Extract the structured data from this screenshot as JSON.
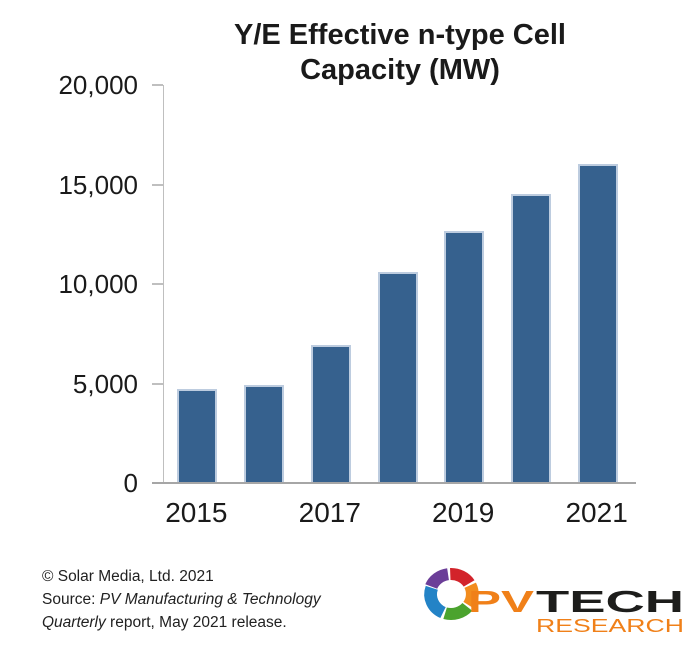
{
  "chart_data": {
    "type": "bar",
    "title": "Y/E Effective n-type Cell Capacity (MW)",
    "categories": [
      "2015",
      "2016",
      "2017",
      "2018",
      "2019",
      "2020",
      "2021"
    ],
    "values": [
      4700,
      4900,
      6950,
      10600,
      12650,
      14500,
      16050
    ],
    "xlabel": "",
    "ylabel": "",
    "ylim": [
      0,
      20000
    ],
    "grid": false,
    "legend": "none",
    "y_ticks": [
      {
        "value": 0,
        "label": "0"
      },
      {
        "value": 5000,
        "label": "5,000"
      },
      {
        "value": 10000,
        "label": "10,000"
      },
      {
        "value": 15000,
        "label": "15,000"
      },
      {
        "value": 20000,
        "label": "20,000"
      }
    ],
    "x_ticks": [
      {
        "slot": 0,
        "label": "2015"
      },
      {
        "slot": 2,
        "label": "2017"
      },
      {
        "slot": 4,
        "label": "2019"
      },
      {
        "slot": 6,
        "label": "2021"
      }
    ],
    "bar_color": "#36618E",
    "bar_edge_color": "#bdccdf",
    "axis_color": "#bfbfbf",
    "xaxis_line_color": "#a6a6a6"
  },
  "footer": {
    "line1": "© Solar Media, Ltd. 2021",
    "line2_prefix": "Source: ",
    "line2_italic": "PV Manufacturing & Technology",
    "line3_italic": "Quarterly",
    "line3_rest": " report, May 2021 release."
  },
  "logo": {
    "pv": "PV",
    "tech": "TECH",
    "research": "RESEARCH",
    "orange": "#F08019",
    "dark": "#1D1D1B",
    "ring_colors": {
      "purple": "#6B3E98",
      "red": "#D2232A",
      "orange": "#F28C1E",
      "green": "#4BA32E",
      "blue": "#2383C6"
    }
  }
}
